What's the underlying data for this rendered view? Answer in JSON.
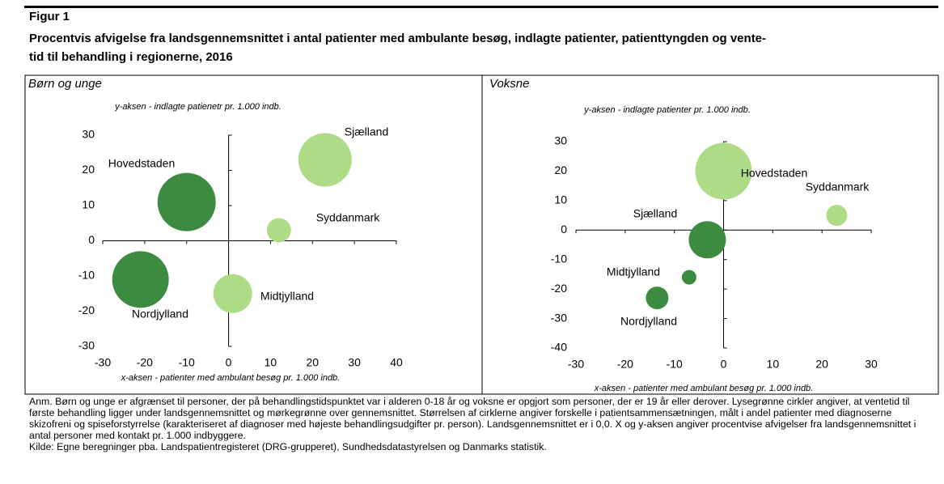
{
  "figure_label": "Figur 1",
  "title": [
    "Procentvis afvigelse fra landsgennemsnittet i antal patienter med ambulante besøg, indlagte patienter, patienttyngden og vente-",
    "tid til behandling i regionerne, 2016"
  ],
  "chart_data": [
    {
      "type": "bubble",
      "subtitle": "Børn og unge",
      "y_label": "y-aksen - indlagte patienetr pr. 1.000 indb.",
      "x_label": "x-aksen - patienter med ambulant besøg pr. 1.000 indb.",
      "labels": [
        "Hovedstaden",
        "Sjælland",
        "Syddanmark",
        "Nordjylland",
        "Midtjylland"
      ],
      "x": [
        -10,
        23,
        12,
        -21,
        1
      ],
      "values": [
        11,
        23,
        3,
        -11,
        -15
      ],
      "sizes": [
        36,
        33,
        15,
        35,
        24
      ],
      "colors": [
        "#3d8b40",
        "#aedb85",
        "#aedb85",
        "#3d8b40",
        "#aedb85"
      ],
      "xlim": [
        -30,
        40
      ],
      "xticks": [
        -30,
        -20,
        -10,
        0,
        10,
        20,
        30,
        40
      ],
      "ylim": [
        -30,
        30
      ],
      "yticks": [
        -30,
        -20,
        -10,
        0,
        10,
        20,
        30
      ]
    },
    {
      "type": "bubble",
      "subtitle": "Voksne",
      "y_label": "y-aksen - indlagte patienter pr. 1.000 indb.",
      "x_label": "x-aksen - patienter med ambulant besøg pr. 1.000 indb.",
      "labels": [
        "Hovedstaden",
        "Syddanmark",
        "Sjælland",
        "Midtjylland",
        "Nordjylland"
      ],
      "x": [
        0,
        23,
        -3.3,
        -7,
        -13.5
      ],
      "values": [
        20,
        5,
        -3.3,
        -16,
        -23
      ],
      "sizes": [
        35,
        13,
        23,
        9,
        14
      ],
      "colors": [
        "#aedb85",
        "#aedb85",
        "#3d8b40",
        "#3d8b40",
        "#3d8b40"
      ],
      "xlim": [
        -30,
        30
      ],
      "xticks": [
        -30,
        -20,
        -10,
        0,
        10,
        20,
        30
      ],
      "ylim": [
        -40,
        30
      ],
      "yticks": [
        -40,
        -30,
        -20,
        -10,
        0,
        10,
        20,
        30
      ]
    }
  ],
  "note": "Anm. Børn og unge er afgrænset til personer, der på behandlingstidspunktet var i alderen 0-18 år og voksne er opgjort som personer, der er 19 år eller derover. Lysegrønne cirkler angiver, at ventetid til første behandling ligger under landsgennemsnittet og mørkegrønne over gennemsnittet. Størrelsen af cirklerne angiver forskelle i patientsammensætningen, målt i andel patienter med diagnoserne skizofreni og spiseforstyrrelse (karakteriseret af diagnoser med højeste behandlingsudgifter pr. person). Landsgennemsnittet er i 0,0. X og y-aksen angiver procentvise afvigelser fra landsgennemsnittet i antal personer med kontakt pr. 1.000 indbyggere.",
  "source": "Kilde: Egne beregninger pba. Landspatientregisteret (DRG-grupperet), Sundhedsdatastyrelsen og Danmarks statistik."
}
